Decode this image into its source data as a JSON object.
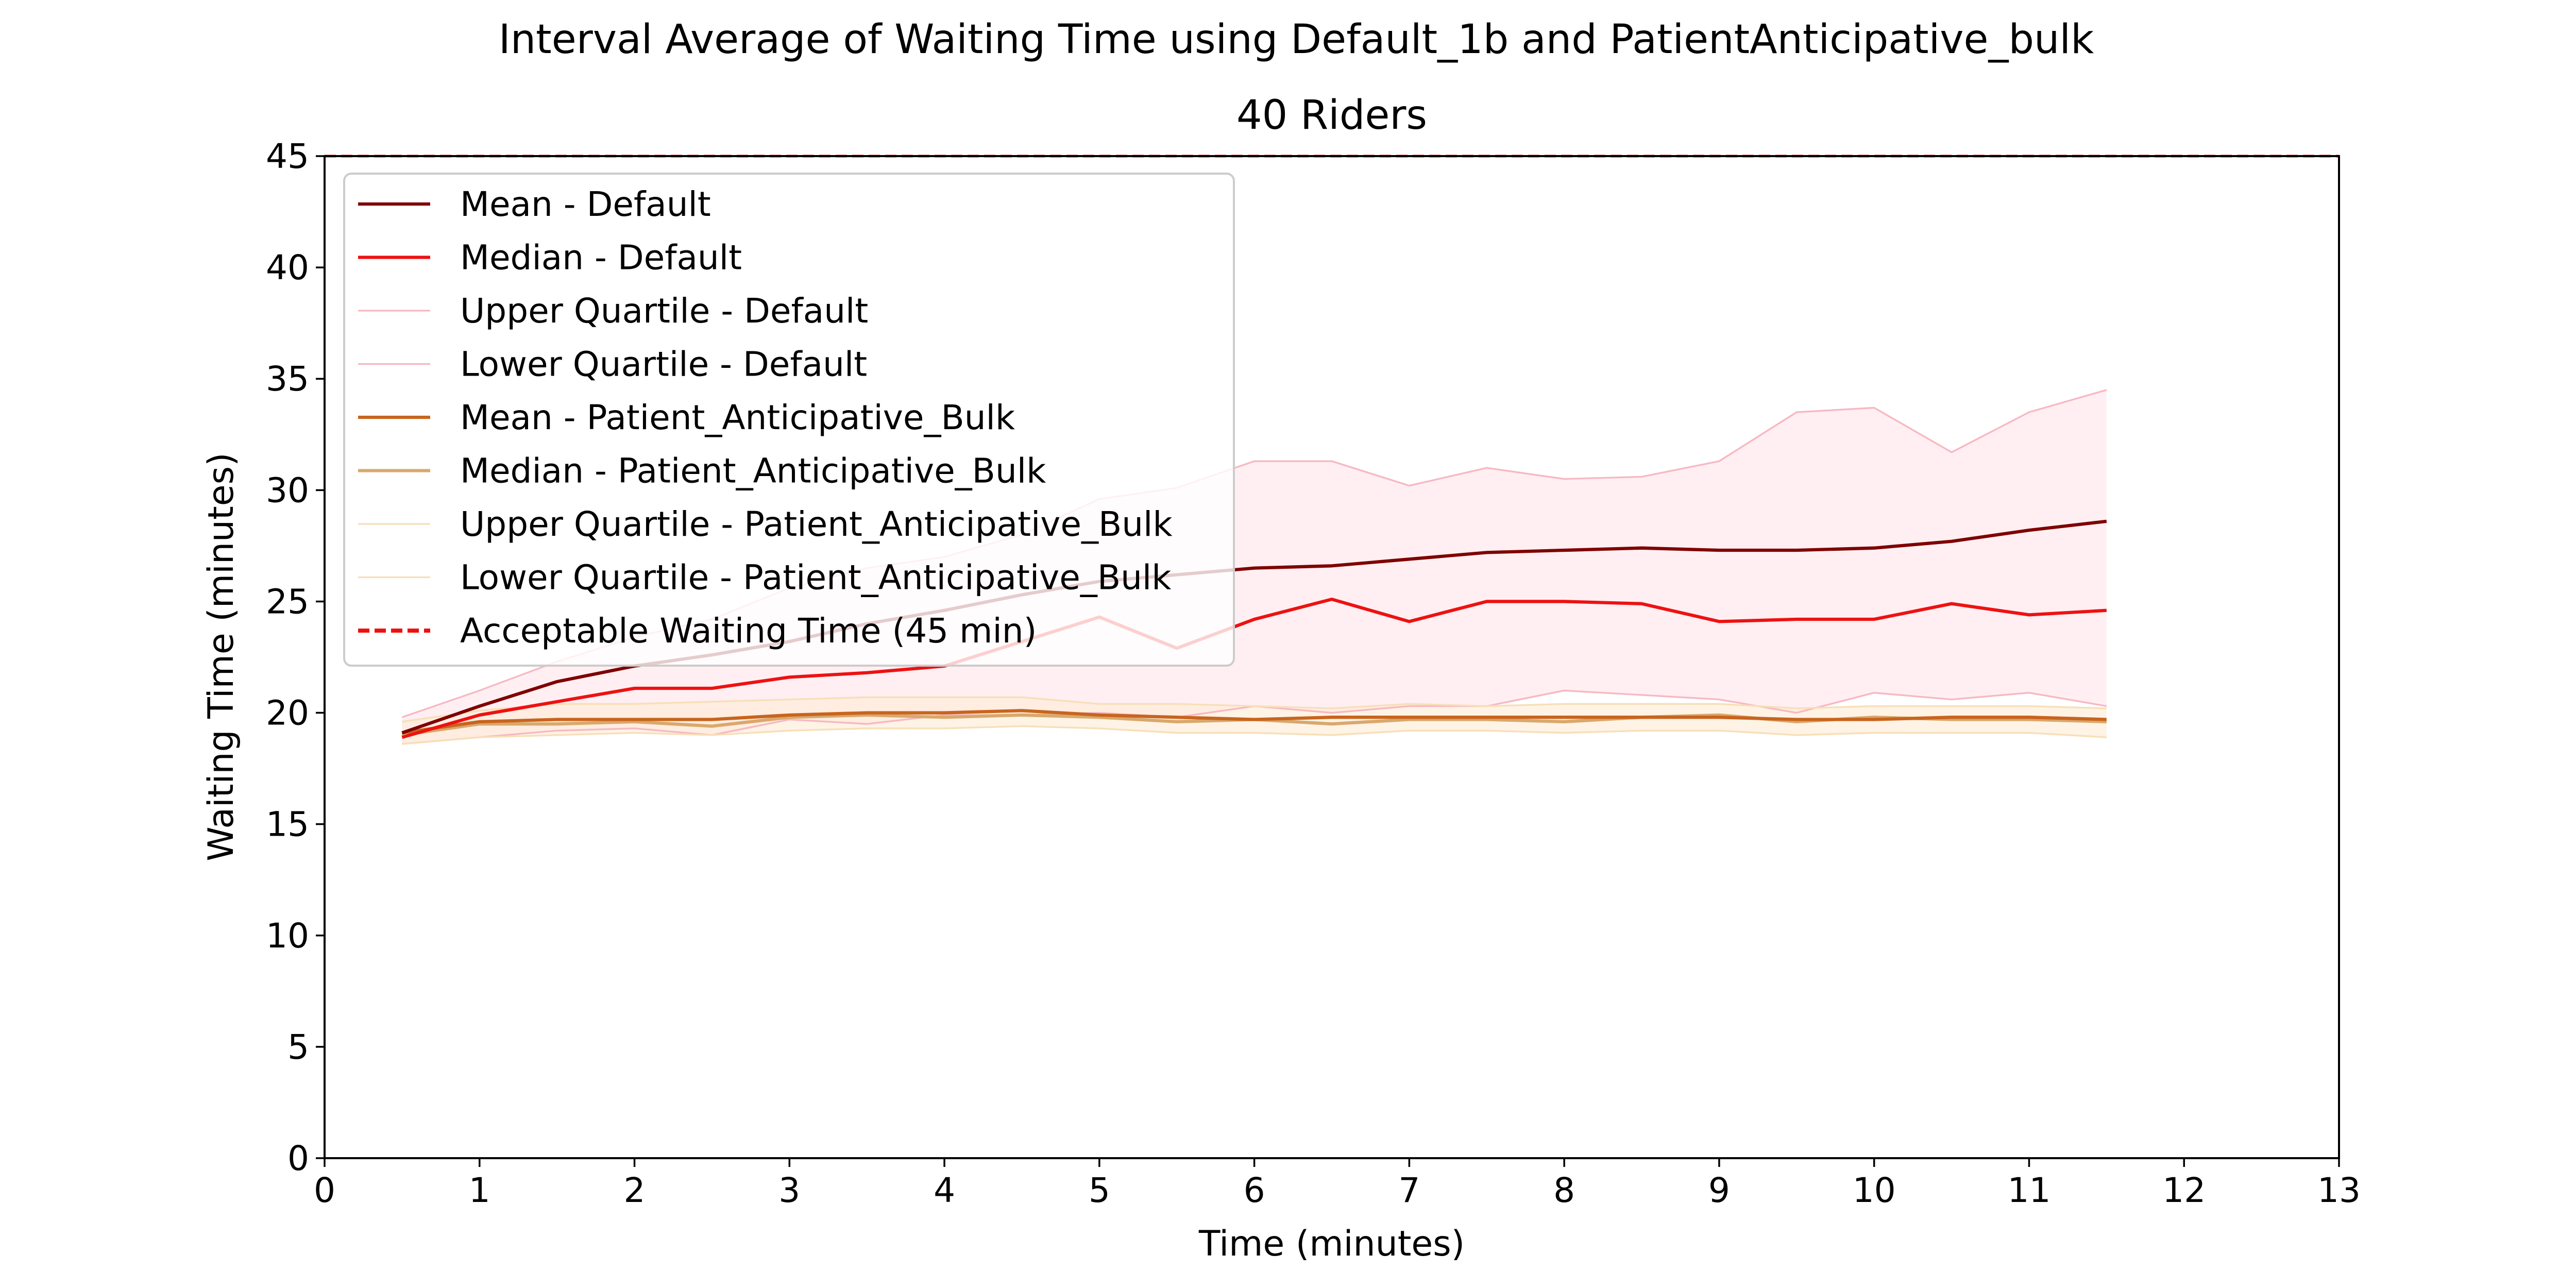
{
  "chart_data": {
    "type": "line",
    "title": "Interval Average of Waiting Time using Default_1b and PatientAnticipative_bulk",
    "subtitle": "40 Riders",
    "xlabel": "Time (minutes)",
    "ylabel": "Waiting Time (minutes)",
    "xlim": [
      0,
      13
    ],
    "ylim": [
      0,
      45
    ],
    "xticks": [
      "0",
      "1",
      "2",
      "3",
      "4",
      "5",
      "6",
      "7",
      "8",
      "9",
      "10",
      "11",
      "12",
      "13"
    ],
    "yticks": [
      "0",
      "5",
      "10",
      "15",
      "20",
      "25",
      "30",
      "35",
      "40",
      "45"
    ],
    "grid": false,
    "legend_position": "top-left",
    "x": [
      0.5,
      1.0,
      1.5,
      2.0,
      2.5,
      3.0,
      3.5,
      4.0,
      4.5,
      5.0,
      5.5,
      6.0,
      6.5,
      7.0,
      7.5,
      8.0,
      8.5,
      9.0,
      9.5,
      10.0,
      10.5,
      11.0,
      11.5
    ],
    "series": [
      {
        "name": "Mean - Default",
        "color": "#7f0000",
        "width": 1.5,
        "values": [
          19.1,
          20.3,
          21.4,
          22.1,
          22.6,
          23.2,
          24.0,
          24.6,
          25.3,
          25.9,
          26.2,
          26.5,
          26.6,
          26.9,
          27.2,
          27.3,
          27.4,
          27.3,
          27.3,
          27.4,
          27.7,
          28.2,
          28.6
        ]
      },
      {
        "name": "Median - Default",
        "color": "#ee1111",
        "width": 1.5,
        "values": [
          18.9,
          19.9,
          20.5,
          21.1,
          21.1,
          21.6,
          21.8,
          22.1,
          23.2,
          24.3,
          22.9,
          24.2,
          25.1,
          24.1,
          25.0,
          25.0,
          24.9,
          24.1,
          24.2,
          24.2,
          24.9,
          24.4,
          24.6
        ]
      },
      {
        "name": "Upper Quartile - Default",
        "color": "#f7b8c2",
        "width": 0.8,
        "values": [
          19.8,
          21.0,
          22.3,
          23.4,
          24.2,
          25.6,
          26.5,
          27.0,
          28.0,
          29.6,
          30.1,
          31.3,
          31.3,
          30.2,
          31.0,
          30.5,
          30.6,
          31.3,
          33.5,
          33.7,
          31.7,
          33.5,
          34.5
        ]
      },
      {
        "name": "Lower Quartile - Default",
        "color": "#f7b8c2",
        "width": 0.8,
        "values": [
          18.6,
          18.9,
          19.2,
          19.3,
          19.0,
          19.7,
          19.5,
          19.9,
          19.9,
          20.0,
          19.8,
          20.3,
          20.0,
          20.3,
          20.3,
          21.0,
          20.8,
          20.6,
          20.0,
          20.9,
          20.6,
          20.9,
          20.3
        ]
      },
      {
        "name": "Mean - Patient_Anticipative_Bulk",
        "color": "#c8641e",
        "width": 1.5,
        "values": [
          19.1,
          19.6,
          19.7,
          19.7,
          19.7,
          19.9,
          20.0,
          20.0,
          20.1,
          19.9,
          19.8,
          19.7,
          19.8,
          19.8,
          19.8,
          19.8,
          19.8,
          19.8,
          19.7,
          19.7,
          19.8,
          19.8,
          19.7
        ]
      },
      {
        "name": "Median - Patient_Anticipative_Bulk",
        "color": "#d9a86c",
        "width": 1.5,
        "values": [
          19.0,
          19.5,
          19.5,
          19.6,
          19.4,
          19.8,
          19.9,
          19.8,
          19.9,
          19.8,
          19.6,
          19.7,
          19.5,
          19.7,
          19.7,
          19.6,
          19.8,
          19.9,
          19.6,
          19.8,
          19.7,
          19.7,
          19.6
        ]
      },
      {
        "name": "Upper Quartile - Patient_Anticipative_Bulk",
        "color": "#f7dfb8",
        "width": 0.8,
        "values": [
          19.6,
          20.1,
          20.4,
          20.4,
          20.5,
          20.6,
          20.7,
          20.7,
          20.7,
          20.4,
          20.4,
          20.3,
          20.2,
          20.4,
          20.3,
          20.4,
          20.4,
          20.4,
          20.2,
          20.3,
          20.3,
          20.3,
          20.2
        ]
      },
      {
        "name": "Lower Quartile - Patient_Anticipative_Bulk",
        "color": "#f7dfb8",
        "width": 0.8,
        "values": [
          18.6,
          18.9,
          19.0,
          19.1,
          19.0,
          19.2,
          19.3,
          19.3,
          19.4,
          19.3,
          19.1,
          19.1,
          19.0,
          19.2,
          19.2,
          19.1,
          19.2,
          19.2,
          19.0,
          19.1,
          19.1,
          19.1,
          18.9
        ]
      }
    ],
    "bands": [
      {
        "upper_series": 2,
        "lower_series": 3,
        "color": "#ffe4ea",
        "opacity": 0.6
      },
      {
        "upper_series": 6,
        "lower_series": 7,
        "color": "#fdebd3",
        "opacity": 0.6
      }
    ],
    "reference_line": {
      "name": "Acceptable Waiting Time (45 min)",
      "y": 45,
      "color": "#ee1111"
    }
  }
}
